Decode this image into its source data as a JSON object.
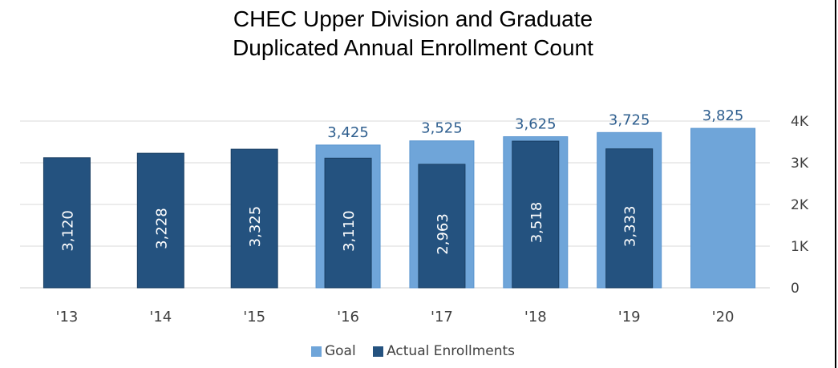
{
  "chart_data": {
    "type": "bar",
    "title_line1": "CHEC Upper Division and Graduate",
    "title_line2": "Duplicated Annual Enrollment Count",
    "categories": [
      "'13",
      "'14",
      "'15",
      "'16",
      "'17",
      "'18",
      "'19",
      "'20"
    ],
    "series": [
      {
        "name": "Goal",
        "color": "#6fa5d9",
        "values": [
          null,
          null,
          null,
          3425,
          3525,
          3625,
          3725,
          3825
        ],
        "labels": [
          "",
          "",
          "",
          "3,425",
          "3,525",
          "3,625",
          "3,725",
          "3,825"
        ]
      },
      {
        "name": "Actual Enrollments",
        "color": "#24527f",
        "values": [
          3120,
          3228,
          3325,
          3110,
          2963,
          3518,
          3333,
          null
        ],
        "labels": [
          "3,120",
          "3,228",
          "3,325",
          "3,110",
          "2,963",
          "3,518",
          "3,333",
          ""
        ]
      }
    ],
    "y_ticks": [
      "0",
      "1K",
      "2K",
      "3K",
      "4K"
    ],
    "ylim": [
      0,
      4000
    ],
    "y_axis_side": "right",
    "grid": true,
    "legend_position": "bottom"
  }
}
